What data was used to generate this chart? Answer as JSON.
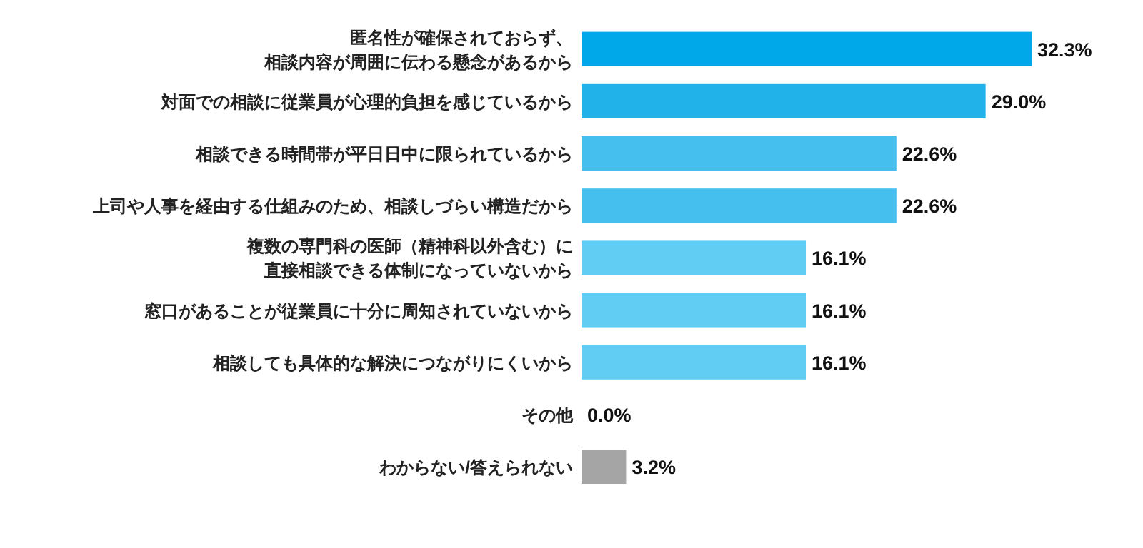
{
  "chart_data": {
    "type": "bar",
    "orientation": "horizontal",
    "categories": [
      "匿名性が確保されておらず、相談内容が周囲に伝わる懸念があるから",
      "対面での相談に従業員が心理的負担を感じているから",
      "相談できる時間帯が平日日中に限られているから",
      "上司や人事を経由する仕組みのため、相談しづらい構造だから",
      "複数の専門科の医師（精神科以外含む）に直接相談できる体制になっていないから",
      "窓口があることが従業員に十分に周知されていないから",
      "相談しても具体的な解決につながりにくいから",
      "その他",
      "わからない/答えられない"
    ],
    "values": [
      32.3,
      29.0,
      22.6,
      22.6,
      16.1,
      16.1,
      16.1,
      0.0,
      3.2
    ],
    "colors": [
      "#00a7e9",
      "#22b2ea",
      "#45c0ee",
      "#45c0ee",
      "#62cdf3",
      "#62cdf3",
      "#62cdf3",
      "#62cdf3",
      "#a5a5a5"
    ],
    "value_labels": [
      "32.3%",
      "29.0%",
      "22.6%",
      "22.6%",
      "16.1%",
      "16.1%",
      "16.1%",
      "0.0%",
      "3.2%"
    ]
  }
}
